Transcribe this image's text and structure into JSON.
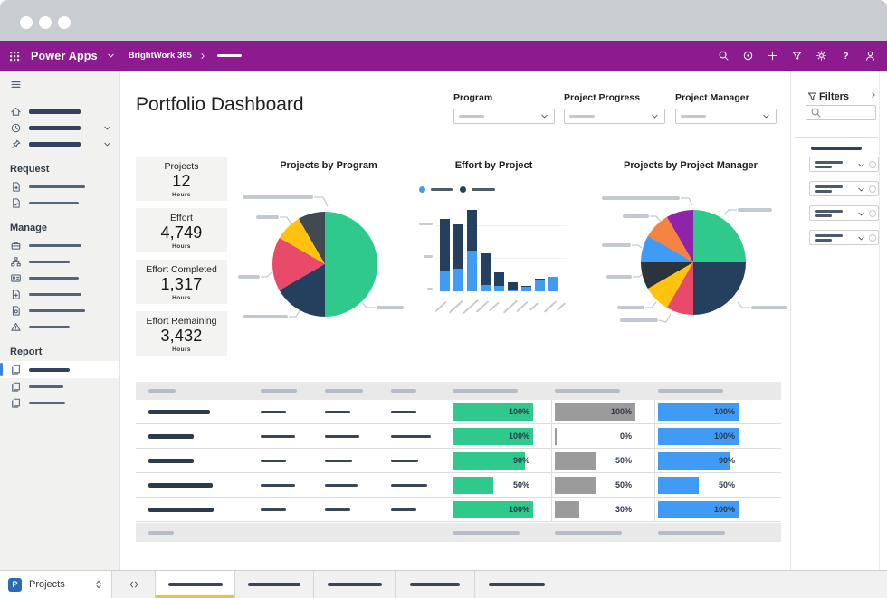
{
  "app_bar": {
    "brand": "Power Apps",
    "breadcrumb": "BrightWork 365",
    "right_icons": [
      "search",
      "record",
      "add",
      "filter",
      "settings",
      "help",
      "account"
    ]
  },
  "sidebar": {
    "top_items": [
      {
        "icon": "home"
      },
      {
        "icon": "recent",
        "chevron": true
      },
      {
        "icon": "pinned",
        "chevron": true
      }
    ],
    "sections": [
      {
        "label": "Request",
        "items": [
          {
            "icon": "request-document"
          },
          {
            "icon": "request-form"
          }
        ]
      },
      {
        "label": "Manage",
        "items": [
          {
            "icon": "briefcase"
          },
          {
            "icon": "org-chart"
          },
          {
            "icon": "contact-card"
          },
          {
            "icon": "document-add"
          },
          {
            "icon": "document-settings"
          },
          {
            "icon": "issue-warning"
          }
        ]
      },
      {
        "label": "Report",
        "items": [
          {
            "icon": "report-pages",
            "selected": true
          },
          {
            "icon": "report-pages"
          },
          {
            "icon": "report-pages"
          }
        ]
      }
    ]
  },
  "page": {
    "title": "Portfolio Dashboard",
    "top_filters": [
      {
        "label": "Program"
      },
      {
        "label": "Project Progress"
      },
      {
        "label": "Project Manager"
      }
    ]
  },
  "kpis": [
    {
      "label": "Projects",
      "value": "12",
      "unit": "Hours"
    },
    {
      "label": "Effort",
      "value": "4,749",
      "unit": "Hours"
    },
    {
      "label": "Effort Completed",
      "value": "1,317",
      "unit": "Hours"
    },
    {
      "label": "Effort Remaining",
      "value": "3,432",
      "unit": "Hours"
    }
  ],
  "chart_data": [
    {
      "type": "pie",
      "title": "Projects by Program",
      "values": [
        6,
        2,
        2,
        1,
        1
      ],
      "total": 12,
      "unit": "projects",
      "colors": [
        "#2fc98c",
        "#24405e",
        "#e84a6a",
        "#ffc30f",
        "#414a52"
      ],
      "labels_redacted": true,
      "legend_position": "callouts"
    },
    {
      "type": "bar",
      "title": "Effort by Project",
      "stacked": true,
      "legend_redacted": true,
      "x_labels_redacted": true,
      "y_ticks_redacted": true,
      "value_unit": "relative-height",
      "series": [
        {
          "name": "series-1",
          "color": "#3f9bf4",
          "values": [
            22,
            25,
            45,
            7,
            6,
            2,
            5,
            12,
            16
          ]
        },
        {
          "name": "series-2",
          "color": "#24405e",
          "values": [
            58,
            49,
            45,
            35,
            15,
            8,
            1,
            2,
            0
          ]
        }
      ]
    },
    {
      "type": "pie",
      "title": "Projects by Project Manager",
      "values": [
        3,
        3,
        1,
        1,
        1,
        1,
        1,
        1
      ],
      "total": 12,
      "unit": "projects",
      "colors": [
        "#2fc98c",
        "#24405e",
        "#e84a6a",
        "#ffc30f",
        "#2b343c",
        "#3f9bf4",
        "#f58442",
        "#8e24aa"
      ],
      "labels_redacted": true,
      "legend_position": "callouts"
    }
  ],
  "table": {
    "header_redacted": true,
    "progress_columns": [
      {
        "name": "progress-green",
        "color": "#2fc98c"
      },
      {
        "name": "progress-gray",
        "color": "#9b9b9b"
      },
      {
        "name": "progress-blue",
        "color": "#3f9bf4"
      }
    ],
    "rows": [
      {
        "percents": [
          100,
          100,
          100
        ]
      },
      {
        "percents": [
          100,
          0,
          100
        ]
      },
      {
        "percents": [
          90,
          50,
          90
        ]
      },
      {
        "percents": [
          50,
          50,
          50
        ]
      },
      {
        "percents": [
          100,
          30,
          100
        ]
      }
    ]
  },
  "filters_panel": {
    "title": "Filters",
    "has_search": true,
    "dropdown_count": 4
  },
  "bottom_bar": {
    "app_initial": "P",
    "app_label": "Projects",
    "tab_count": 5
  },
  "colors": {
    "brand_purple": "#8b1b8f",
    "accent_yellow": "#f2c811",
    "selected_indicator": "#3b82d9",
    "tile_blue": "#2a6cb3"
  }
}
